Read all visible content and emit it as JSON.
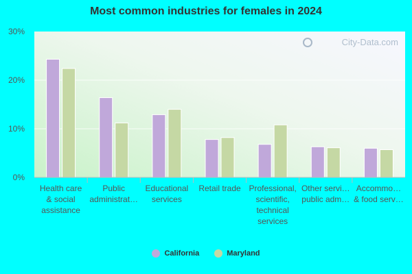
{
  "chart_data": {
    "type": "bar",
    "title": "Most common industries for females in 2024",
    "categories": [
      [
        "Health care",
        "& social",
        "assistance"
      ],
      [
        "Public",
        "administrat…"
      ],
      [
        "Educational",
        "services"
      ],
      [
        "Retail trade"
      ],
      [
        "Professional,",
        "scientific,",
        "technical",
        "services"
      ],
      [
        "Other servi…",
        "public adm…"
      ],
      [
        "Accommo…",
        "& food serv…"
      ]
    ],
    "series": [
      {
        "name": "California",
        "color": "#C0A8DA",
        "values": [
          24.3,
          16.4,
          12.9,
          7.8,
          6.8,
          6.3,
          6.0
        ]
      },
      {
        "name": "Maryland",
        "color": "#C5D8A4",
        "values": [
          22.4,
          11.2,
          14.0,
          8.2,
          10.8,
          6.1,
          5.7
        ]
      }
    ],
    "yticks": [
      "0%",
      "10%",
      "20%",
      "30%"
    ],
    "ylim": [
      0,
      30
    ],
    "watermark": "City-Data.com"
  }
}
